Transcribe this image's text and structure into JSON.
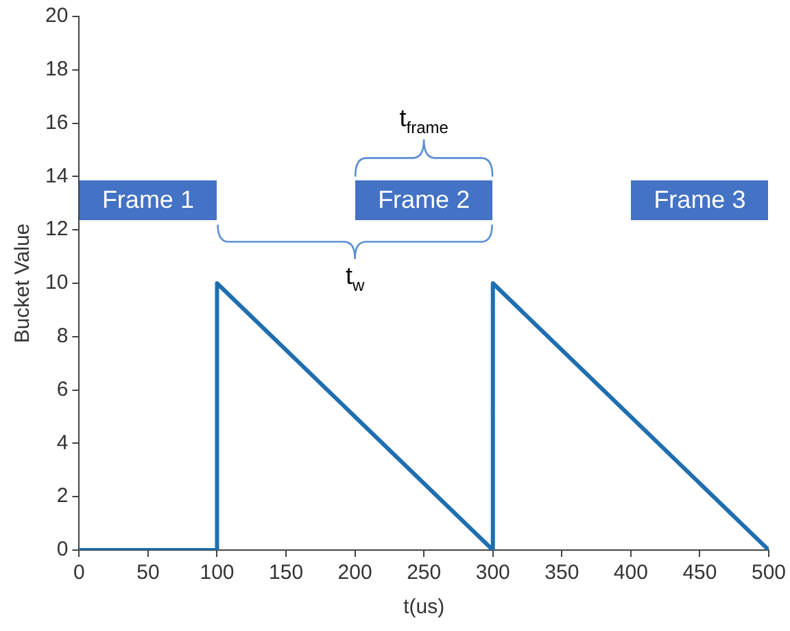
{
  "chart_data": {
    "type": "line",
    "xlabel": "t(us)",
    "ylabel": "Bucket Value",
    "x": [
      0,
      100,
      100,
      300,
      300,
      500
    ],
    "series": [
      {
        "color": "#1f6fb0",
        "values": [
          0,
          0,
          10,
          0,
          10,
          0
        ]
      }
    ],
    "xlim": [
      0,
      500
    ],
    "xticks": [
      0,
      50,
      100,
      150,
      200,
      250,
      300,
      350,
      400,
      450,
      500
    ],
    "ylim": [
      0,
      20
    ],
    "yticks": [
      0,
      2,
      4,
      6,
      8,
      10,
      12,
      14,
      16,
      18,
      20
    ],
    "grid": false,
    "legend": false,
    "marker": "none",
    "line_style": "solid",
    "annotations": [
      "Frame 1",
      "Frame 2",
      "Frame 3",
      "t$_{frame}$",
      "t$_{w}$"
    ]
  }
}
